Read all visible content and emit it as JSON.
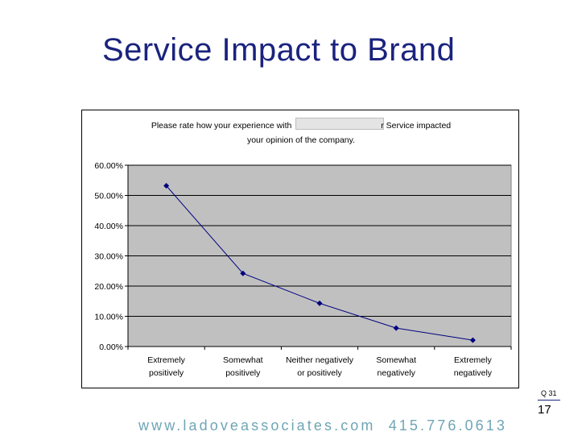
{
  "slide": {
    "title": "Service Impact to Brand",
    "question_ref": "Q 31",
    "page_number": "17",
    "footer": "www.ladoveassociates.com  415.776.0613"
  },
  "chart_data": {
    "type": "line",
    "title_line1": "Please rate how your experience with                                      r Service impacted",
    "title_line2": "your opinion of the company.",
    "categories": [
      [
        "Extremely",
        "positively"
      ],
      [
        "Somewhat",
        "positively"
      ],
      [
        "Neither negatively",
        "or positively"
      ],
      [
        "Somewhat",
        "negatively"
      ],
      [
        "Extremely",
        "negatively"
      ]
    ],
    "series": [
      {
        "values": [
          0.532,
          0.242,
          0.143,
          0.061,
          0.021
        ],
        "color": "#000080"
      }
    ],
    "ylim": [
      0,
      0.6
    ],
    "ytick_step": 0.1,
    "ytick_labels": [
      "0.00%",
      "10.00%",
      "20.00%",
      "30.00%",
      "40.00%",
      "50.00%",
      "60.00%"
    ],
    "plot_background": "#c0c0c0",
    "grid": true,
    "legend": "none"
  }
}
